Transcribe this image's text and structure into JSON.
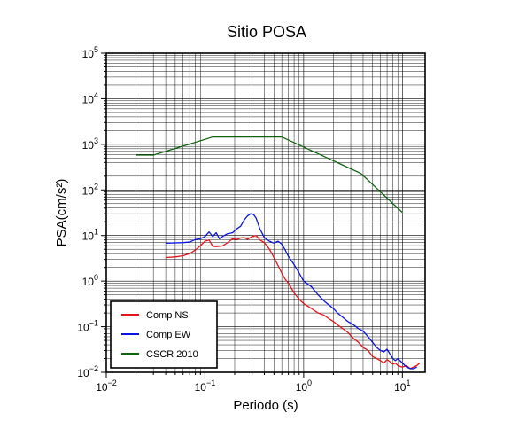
{
  "chart_data": {
    "type": "line",
    "title": "Sitio POSA",
    "xlabel": "Periodo (s)",
    "ylabel": "PSA(cm/s²)",
    "x_scale": "log",
    "y_scale": "log",
    "xlim": [
      0.01,
      17
    ],
    "ylim": [
      0.01,
      100000
    ],
    "grid": true,
    "legend_position": "bottom-left",
    "x_ticks": [
      {
        "base": "10",
        "exp": "−2"
      },
      {
        "base": "10",
        "exp": "−1"
      },
      {
        "base": "10",
        "exp": "0"
      },
      {
        "base": "10",
        "exp": "1"
      }
    ],
    "y_ticks": [
      {
        "base": "10",
        "exp": "−2"
      },
      {
        "base": "10",
        "exp": "−1"
      },
      {
        "base": "10",
        "exp": "0"
      },
      {
        "base": "10",
        "exp": "1"
      },
      {
        "base": "10",
        "exp": "2"
      },
      {
        "base": "10",
        "exp": "3"
      },
      {
        "base": "10",
        "exp": "4"
      },
      {
        "base": "10",
        "exp": "5"
      }
    ],
    "series": [
      {
        "name": "Comp NS",
        "color": "#e8141c",
        "points": [
          [
            0.04,
            3.3
          ],
          [
            0.05,
            3.4
          ],
          [
            0.06,
            3.6
          ],
          [
            0.07,
            4.0
          ],
          [
            0.08,
            4.8
          ],
          [
            0.09,
            6.0
          ],
          [
            0.1,
            7.5
          ],
          [
            0.11,
            8.0
          ],
          [
            0.12,
            5.8
          ],
          [
            0.13,
            5.7
          ],
          [
            0.15,
            5.9
          ],
          [
            0.17,
            7.0
          ],
          [
            0.19,
            8.5
          ],
          [
            0.21,
            8.2
          ],
          [
            0.23,
            8.8
          ],
          [
            0.25,
            9.0
          ],
          [
            0.27,
            8.3
          ],
          [
            0.3,
            9.5
          ],
          [
            0.33,
            10.0
          ],
          [
            0.36,
            8.0
          ],
          [
            0.4,
            7.0
          ],
          [
            0.45,
            5.0
          ],
          [
            0.5,
            3.3
          ],
          [
            0.55,
            2.2
          ],
          [
            0.6,
            1.5
          ],
          [
            0.65,
            1.1
          ],
          [
            0.7,
            0.9
          ],
          [
            0.8,
            0.55
          ],
          [
            0.9,
            0.4
          ],
          [
            1.0,
            0.32
          ],
          [
            1.2,
            0.25
          ],
          [
            1.4,
            0.2
          ],
          [
            1.6,
            0.18
          ],
          [
            1.8,
            0.15
          ],
          [
            2.0,
            0.13
          ],
          [
            2.2,
            0.11
          ],
          [
            2.5,
            0.09
          ],
          [
            2.8,
            0.075
          ],
          [
            3.2,
            0.055
          ],
          [
            3.6,
            0.045
          ],
          [
            4.0,
            0.035
          ],
          [
            4.5,
            0.03
          ],
          [
            5.0,
            0.022
          ],
          [
            5.5,
            0.02
          ],
          [
            6.0,
            0.018
          ],
          [
            6.5,
            0.016
          ],
          [
            7.0,
            0.019
          ],
          [
            7.5,
            0.017
          ],
          [
            8.0,
            0.015
          ],
          [
            8.5,
            0.016
          ],
          [
            9.0,
            0.014
          ],
          [
            10.0,
            0.013
          ],
          [
            11.0,
            0.014
          ],
          [
            12.0,
            0.012
          ],
          [
            13.0,
            0.013
          ],
          [
            14.0,
            0.014
          ],
          [
            15.0,
            0.016
          ]
        ]
      },
      {
        "name": "Comp EW",
        "color": "#0a14e6",
        "points": [
          [
            0.04,
            6.8
          ],
          [
            0.05,
            6.9
          ],
          [
            0.06,
            7.0
          ],
          [
            0.07,
            7.2
          ],
          [
            0.08,
            8.2
          ],
          [
            0.09,
            8.5
          ],
          [
            0.1,
            9.5
          ],
          [
            0.11,
            12.0
          ],
          [
            0.12,
            9.5
          ],
          [
            0.13,
            11.5
          ],
          [
            0.14,
            8.5
          ],
          [
            0.15,
            9.5
          ],
          [
            0.17,
            11.0
          ],
          [
            0.19,
            11.5
          ],
          [
            0.21,
            14.0
          ],
          [
            0.23,
            16.0
          ],
          [
            0.25,
            22.0
          ],
          [
            0.27,
            27.0
          ],
          [
            0.29,
            30.0
          ],
          [
            0.31,
            29.0
          ],
          [
            0.33,
            24.0
          ],
          [
            0.36,
            14.0
          ],
          [
            0.4,
            9.0
          ],
          [
            0.45,
            7.5
          ],
          [
            0.5,
            6.8
          ],
          [
            0.55,
            7.5
          ],
          [
            0.6,
            6.5
          ],
          [
            0.65,
            4.8
          ],
          [
            0.7,
            3.5
          ],
          [
            0.8,
            2.3
          ],
          [
            0.9,
            1.5
          ],
          [
            1.0,
            1.0
          ],
          [
            1.2,
            0.75
          ],
          [
            1.4,
            0.5
          ],
          [
            1.6,
            0.37
          ],
          [
            1.8,
            0.3
          ],
          [
            2.0,
            0.25
          ],
          [
            2.2,
            0.2
          ],
          [
            2.5,
            0.16
          ],
          [
            2.8,
            0.13
          ],
          [
            3.2,
            0.11
          ],
          [
            3.6,
            0.09
          ],
          [
            4.0,
            0.08
          ],
          [
            4.5,
            0.06
          ],
          [
            5.0,
            0.045
          ],
          [
            5.5,
            0.035
          ],
          [
            6.0,
            0.03
          ],
          [
            6.5,
            0.028
          ],
          [
            7.0,
            0.032
          ],
          [
            7.5,
            0.025
          ],
          [
            8.0,
            0.02
          ],
          [
            8.5,
            0.018
          ],
          [
            9.0,
            0.02
          ],
          [
            10.0,
            0.016
          ],
          [
            11.0,
            0.013
          ],
          [
            12.0,
            0.012
          ],
          [
            13.0,
            0.012
          ],
          [
            14.0,
            0.013
          ]
        ]
      },
      {
        "name": "CSCR 2010",
        "color": "#0f640f",
        "points": [
          [
            0.02,
            580
          ],
          [
            0.03,
            580
          ],
          [
            0.12,
            1450
          ],
          [
            0.6,
            1450
          ],
          [
            3.8,
            230
          ],
          [
            10.0,
            32
          ]
        ]
      }
    ]
  }
}
